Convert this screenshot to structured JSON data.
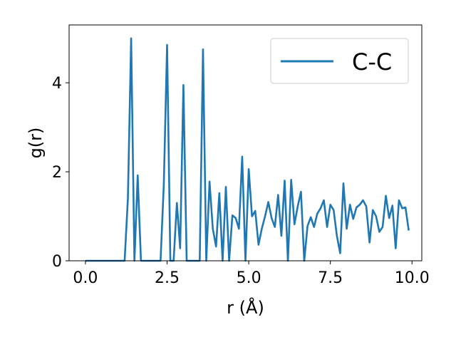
{
  "chart_data": {
    "type": "line",
    "title": "",
    "xlabel": "r (Å)",
    "ylabel": "g(r)",
    "xlim": [
      -0.5,
      10.3
    ],
    "ylim": [
      0,
      5.3
    ],
    "xticks": [
      0.0,
      2.5,
      5.0,
      7.5,
      10.0
    ],
    "xtick_labels": [
      "0.0",
      "2.5",
      "5.0",
      "7.5",
      "10.0"
    ],
    "yticks": [
      0,
      2,
      4
    ],
    "ytick_labels": [
      "0",
      "2",
      "4"
    ],
    "grid": false,
    "legend_position": "top-right",
    "series": [
      {
        "name": "C-C",
        "color": "#1f77b4",
        "x": [
          0.0,
          0.1,
          0.2,
          0.3,
          0.4,
          0.5,
          0.6,
          0.7,
          0.8,
          0.9,
          1.0,
          1.1,
          1.2,
          1.3,
          1.4,
          1.5,
          1.6,
          1.7,
          1.8,
          1.9,
          2.0,
          2.1,
          2.2,
          2.3,
          2.4,
          2.5,
          2.6,
          2.7,
          2.8,
          2.9,
          3.0,
          3.1,
          3.2,
          3.3,
          3.4,
          3.5,
          3.6,
          3.7,
          3.8,
          3.9,
          4.0,
          4.1,
          4.2,
          4.3,
          4.4,
          4.5,
          4.6,
          4.7,
          4.8,
          4.9,
          5.0,
          5.1,
          5.2,
          5.3,
          5.4,
          5.5,
          5.6,
          5.7,
          5.8,
          5.9,
          6.0,
          6.1,
          6.2,
          6.3,
          6.4,
          6.5,
          6.6,
          6.7,
          6.8,
          6.9,
          7.0,
          7.1,
          7.2,
          7.3,
          7.4,
          7.5,
          7.6,
          7.7,
          7.8,
          7.9,
          8.0,
          8.1,
          8.2,
          8.3,
          8.4,
          8.5,
          8.6,
          8.7,
          8.8,
          8.9,
          9.0,
          9.1,
          9.2,
          9.3,
          9.4,
          9.5,
          9.6,
          9.7,
          9.8,
          9.9
        ],
        "y": [
          0,
          0,
          0,
          0,
          0,
          0,
          0,
          0,
          0,
          0,
          0,
          0,
          0,
          1.4,
          5.0,
          0,
          1.92,
          0,
          0,
          0,
          0,
          0,
          0,
          0,
          1.72,
          4.85,
          0,
          0,
          1.3,
          0.28,
          3.95,
          0,
          0,
          0,
          0,
          0,
          4.75,
          0,
          1.78,
          0.72,
          0.32,
          1.52,
          0,
          1.66,
          0,
          1.02,
          0.96,
          0.72,
          2.34,
          0,
          2.06,
          1.0,
          1.12,
          0.36,
          0.72,
          1.0,
          1.32,
          0.96,
          0.76,
          1.48,
          0.56,
          1.8,
          0,
          1.82,
          0.82,
          1.22,
          1.55,
          0,
          0.78,
          0.98,
          0.76,
          1.06,
          1.18,
          1.36,
          0.76,
          1.26,
          1.14,
          0.56,
          0.17,
          1.74,
          0.72,
          1.26,
          0.94,
          1.2,
          1.26,
          1.36,
          1.22,
          0.41,
          1.14,
          1.0,
          0.65,
          0.76,
          1.46,
          0.96,
          1.24,
          0.28,
          1.36,
          1.18,
          1.2,
          0.68
        ]
      }
    ]
  }
}
